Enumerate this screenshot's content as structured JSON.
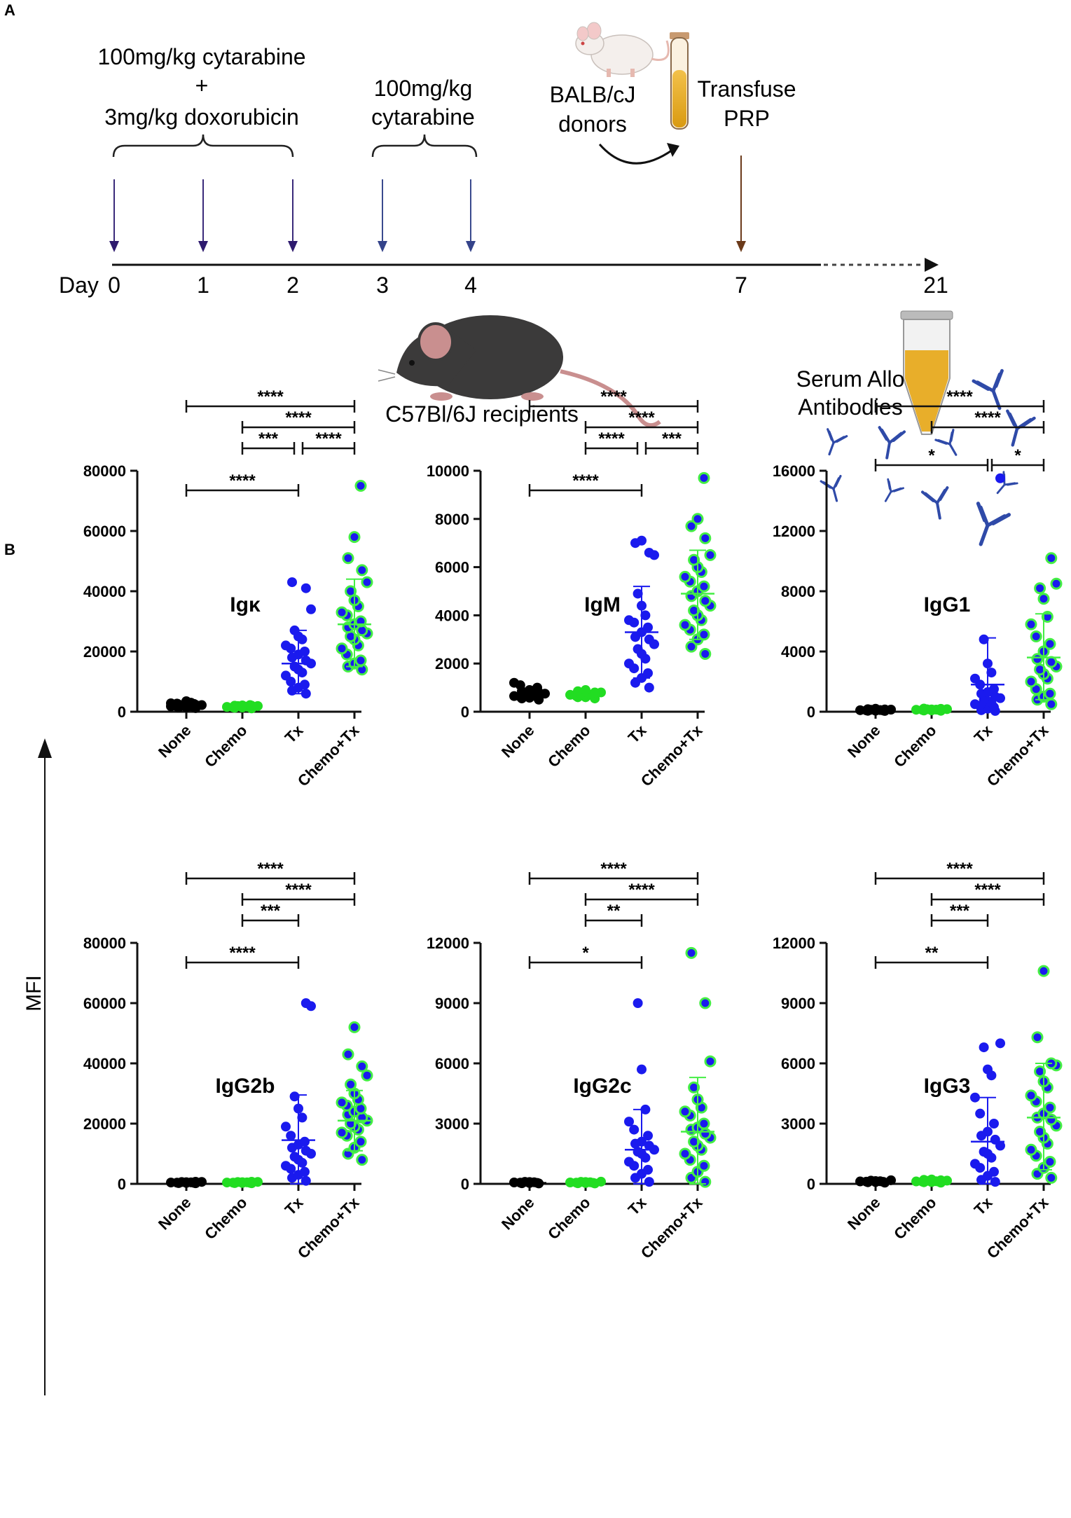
{
  "panelA": {
    "label": "A",
    "cond1_line1": "100mg/kg cytarabine",
    "cond1_plus": "+",
    "cond1_line2": "3mg/kg doxorubicin",
    "cond2_line1": "100mg/kg",
    "cond2_line2": "cytarabine",
    "donors_line1": "BALB/cJ",
    "donors_line2": "donors",
    "transfuse_line1": "Transfuse",
    "transfuse_line2": "PRP",
    "day_prefix": "Day",
    "days": [
      "0",
      "1",
      "2",
      "3",
      "4",
      "7",
      "21"
    ],
    "recipients": "C57Bl/6J recipients",
    "serum_line1": "Serum Allo",
    "serum_line2": "Antibodies"
  },
  "panelB": {
    "label": "B",
    "ylabel": "MFI"
  },
  "colors": {
    "none": "#000000",
    "chemo": "#22dd22",
    "tx": "#1a1aee",
    "chemotx": "#1a1aee",
    "chemotx_edge": "#44ee44"
  },
  "chart_data": [
    {
      "type": "scatter",
      "title": "Igκ",
      "categories": [
        "None",
        "Chemo",
        "Tx",
        "Chemo+Tx"
      ],
      "ylim": [
        0,
        80000
      ],
      "yticks": [
        "0",
        "20000",
        "40000",
        "60000",
        "80000"
      ],
      "series": [
        {
          "name": "None",
          "values": [
            1200,
            1500,
            1800,
            2000,
            2200,
            2400,
            2600,
            2800,
            3000,
            3500,
            1600,
            1900,
            2100,
            2500,
            2300,
            1700,
            1400,
            2700
          ],
          "mean": 2000
        },
        {
          "name": "Chemo",
          "values": [
            1100,
            1300,
            1500,
            1600,
            1800,
            1900,
            2000,
            2100,
            2200,
            1400,
            1700,
            1500,
            1900,
            2000
          ],
          "mean": 1800
        },
        {
          "name": "Tx",
          "values": [
            43000,
            41000,
            34000,
            27000,
            25000,
            22000,
            19000,
            18000,
            16000,
            15000,
            14000,
            12000,
            10000,
            9000,
            8000,
            7000,
            6000,
            20000,
            21000,
            24000,
            17000,
            13000
          ],
          "mean": 16000,
          "sd": [
            6000,
            27000
          ]
        },
        {
          "name": "Chemo+Tx",
          "values": [
            75000,
            58000,
            51000,
            47000,
            43000,
            40000,
            37000,
            35000,
            32000,
            30000,
            28000,
            27000,
            26000,
            25000,
            24000,
            22000,
            21000,
            19000,
            17000,
            16000,
            15000,
            14000,
            33000,
            29000
          ],
          "mean": 29000,
          "sd": [
            15000,
            44000
          ]
        }
      ],
      "comparisons": [
        {
          "groups": [
            "None",
            "Chemo+Tx"
          ],
          "label": "****"
        },
        {
          "groups": [
            "Chemo",
            "Chemo+Tx"
          ],
          "label": "****"
        },
        {
          "groups": [
            "Chemo",
            "Tx"
          ],
          "label": "***"
        },
        {
          "groups": [
            "Tx",
            "Chemo+Tx"
          ],
          "label": "****"
        },
        {
          "groups": [
            "None",
            "Tx"
          ],
          "label": "****"
        }
      ]
    },
    {
      "type": "scatter",
      "title": "IgM",
      "categories": [
        "None",
        "Chemo",
        "Tx",
        "Chemo+Tx"
      ],
      "ylim": [
        0,
        10000
      ],
      "yticks": [
        "0",
        "2000",
        "4000",
        "6000",
        "8000",
        "10000"
      ],
      "series": [
        {
          "name": "None",
          "values": [
            500,
            550,
            600,
            650,
            700,
            750,
            800,
            850,
            900,
            1000,
            1100,
            1200,
            620,
            680,
            720,
            580
          ],
          "mean": 700
        },
        {
          "name": "Chemo",
          "values": [
            550,
            600,
            650,
            700,
            750,
            800,
            850,
            900,
            650,
            700,
            750,
            600,
            800
          ],
          "mean": 700
        },
        {
          "name": "Tx",
          "values": [
            7100,
            7000,
            6600,
            6500,
            4900,
            4400,
            4000,
            3800,
            3500,
            3300,
            3100,
            3000,
            2800,
            2600,
            2400,
            2200,
            2000,
            1800,
            1600,
            1400,
            1200,
            1000,
            3700
          ],
          "mean": 3300,
          "sd": [
            1400,
            5200
          ]
        },
        {
          "name": "Chemo+Tx",
          "values": [
            9700,
            8000,
            7700,
            7200,
            6500,
            6300,
            6000,
            5600,
            5400,
            5200,
            5000,
            4800,
            4600,
            4400,
            4200,
            4000,
            3800,
            3600,
            3400,
            3200,
            3000,
            2700,
            2400,
            5800
          ],
          "mean": 4900,
          "sd": [
            3000,
            6700
          ]
        }
      ],
      "comparisons": [
        {
          "groups": [
            "None",
            "Chemo+Tx"
          ],
          "label": "****"
        },
        {
          "groups": [
            "Chemo",
            "Chemo+Tx"
          ],
          "label": "****"
        },
        {
          "groups": [
            "Chemo",
            "Tx"
          ],
          "label": "****"
        },
        {
          "groups": [
            "Tx",
            "Chemo+Tx"
          ],
          "label": "***"
        },
        {
          "groups": [
            "None",
            "Tx"
          ],
          "label": "****"
        }
      ]
    },
    {
      "type": "scatter",
      "title": "IgG1",
      "categories": [
        "None",
        "Chemo",
        "Tx",
        "Chemo+Tx"
      ],
      "ylim": [
        0,
        16000
      ],
      "yticks": [
        "0",
        "4000",
        "8000",
        "12000",
        "16000"
      ],
      "series": [
        {
          "name": "None",
          "values": [
            50,
            80,
            100,
            120,
            150,
            170,
            200,
            60,
            90,
            110,
            130,
            140,
            70
          ],
          "mean": 100
        },
        {
          "name": "Chemo",
          "values": [
            60,
            90,
            110,
            130,
            150,
            170,
            190,
            210,
            80,
            120,
            140,
            160
          ],
          "mean": 130
        },
        {
          "name": "Tx",
          "values": [
            15500,
            4800,
            3200,
            2600,
            2200,
            1800,
            1500,
            1200,
            1000,
            800,
            600,
            500,
            400,
            300,
            200,
            100,
            50,
            1300,
            900,
            700
          ],
          "mean": 1800,
          "sd": [
            0,
            4900
          ]
        },
        {
          "name": "Chemo+Tx",
          "values": [
            10200,
            8500,
            8200,
            7500,
            6300,
            5800,
            5000,
            4500,
            4000,
            3500,
            3000,
            2500,
            2000,
            1500,
            1200,
            1000,
            800,
            500,
            2200,
            2800,
            3300
          ],
          "mean": 3600,
          "sd": [
            800,
            6500
          ]
        }
      ],
      "comparisons": [
        {
          "groups": [
            "None",
            "Chemo+Tx"
          ],
          "label": "****"
        },
        {
          "groups": [
            "Chemo",
            "Chemo+Tx"
          ],
          "label": "****"
        },
        {
          "groups": [
            "None",
            "Tx"
          ],
          "label": "*"
        },
        {
          "groups": [
            "Tx",
            "Chemo+Tx"
          ],
          "label": "*"
        }
      ]
    },
    {
      "type": "scatter",
      "title": "IgG2b",
      "categories": [
        "None",
        "Chemo",
        "Tx",
        "Chemo+Tx"
      ],
      "ylim": [
        0,
        80000
      ],
      "yticks": [
        "0",
        "20000",
        "40000",
        "60000",
        "80000"
      ],
      "series": [
        {
          "name": "None",
          "values": [
            200,
            300,
            400,
            500,
            600,
            700,
            250,
            350,
            450,
            550,
            650
          ],
          "mean": 450
        },
        {
          "name": "Chemo",
          "values": [
            200,
            300,
            400,
            500,
            600,
            700,
            350,
            450,
            550,
            250,
            650
          ],
          "mean": 450
        },
        {
          "name": "Tx",
          "values": [
            60000,
            59000,
            29000,
            25000,
            22000,
            19000,
            16000,
            14000,
            12000,
            10000,
            9000,
            8000,
            7000,
            6000,
            5000,
            4000,
            3000,
            2000,
            1000,
            11000,
            13000
          ],
          "mean": 14500,
          "sd": [
            0,
            29500
          ]
        },
        {
          "name": "Chemo+Tx",
          "values": [
            52000,
            43000,
            39000,
            36000,
            33000,
            30000,
            28000,
            26000,
            24000,
            23000,
            22000,
            21000,
            20000,
            19000,
            18000,
            17000,
            16000,
            14000,
            12000,
            10000,
            8000,
            25000,
            27000
          ],
          "mean": 21000,
          "sd": [
            11000,
            31000
          ]
        }
      ],
      "comparisons": [
        {
          "groups": [
            "None",
            "Chemo+Tx"
          ],
          "label": "****"
        },
        {
          "groups": [
            "Chemo",
            "Chemo+Tx"
          ],
          "label": "****"
        },
        {
          "groups": [
            "Chemo",
            "Tx"
          ],
          "label": "***"
        },
        {
          "groups": [
            "None",
            "Tx"
          ],
          "label": "****"
        }
      ]
    },
    {
      "type": "scatter",
      "title": "IgG2c",
      "categories": [
        "None",
        "Chemo",
        "Tx",
        "Chemo+Tx"
      ],
      "ylim": [
        0,
        12000
      ],
      "yticks": [
        "0",
        "3000",
        "6000",
        "9000",
        "12000"
      ],
      "series": [
        {
          "name": "None",
          "values": [
            20,
            40,
            60,
            80,
            100,
            30,
            50,
            70,
            90
          ],
          "mean": 50
        },
        {
          "name": "Chemo",
          "values": [
            20,
            40,
            60,
            80,
            100,
            30,
            50,
            70,
            90,
            110
          ],
          "mean": 50
        },
        {
          "name": "Tx",
          "values": [
            9000,
            5700,
            3700,
            3100,
            2700,
            2400,
            2100,
            1900,
            1700,
            1500,
            1300,
            1100,
            900,
            700,
            500,
            300,
            100,
            2000,
            1600
          ],
          "mean": 1700,
          "sd": [
            0,
            3700
          ]
        },
        {
          "name": "Chemo+Tx",
          "values": [
            11500,
            9000,
            6100,
            4800,
            4200,
            3800,
            3400,
            3000,
            2700,
            2500,
            2300,
            2100,
            1900,
            1700,
            1500,
            1200,
            900,
            600,
            300,
            100,
            3600,
            2800
          ],
          "mean": 2600,
          "sd": [
            0,
            5300
          ]
        }
      ],
      "comparisons": [
        {
          "groups": [
            "None",
            "Chemo+Tx"
          ],
          "label": "****"
        },
        {
          "groups": [
            "Chemo",
            "Chemo+Tx"
          ],
          "label": "****"
        },
        {
          "groups": [
            "Chemo",
            "Tx"
          ],
          "label": "**"
        },
        {
          "groups": [
            "None",
            "Tx"
          ],
          "label": "*"
        }
      ]
    },
    {
      "type": "scatter",
      "title": "IgG3",
      "categories": [
        "None",
        "Chemo",
        "Tx",
        "Chemo+Tx"
      ],
      "ylim": [
        0,
        12000
      ],
      "yticks": [
        "0",
        "3000",
        "6000",
        "9000",
        "12000"
      ],
      "series": [
        {
          "name": "None",
          "values": [
            60,
            80,
            100,
            120,
            140,
            160,
            180,
            90,
            110,
            130
          ],
          "mean": 120
        },
        {
          "name": "Chemo",
          "values": [
            60,
            80,
            100,
            120,
            140,
            160,
            180,
            200,
            220,
            90,
            110,
            130,
            150
          ],
          "mean": 140
        },
        {
          "name": "Tx",
          "values": [
            7000,
            6800,
            5700,
            5400,
            4300,
            3500,
            3000,
            2600,
            2200,
            1900,
            1600,
            1300,
            1000,
            800,
            600,
            400,
            200,
            100,
            2400,
            1500
          ],
          "mean": 2100,
          "sd": [
            0,
            4300
          ]
        },
        {
          "name": "Chemo+Tx",
          "values": [
            10600,
            7300,
            6000,
            5900,
            5600,
            5100,
            4800,
            4400,
            4100,
            3800,
            3500,
            3200,
            2900,
            2600,
            2300,
            2000,
            1700,
            1400,
            1100,
            800,
            500,
            300,
            3300
          ],
          "mean": 3300,
          "sd": [
            700,
            6000
          ]
        }
      ],
      "comparisons": [
        {
          "groups": [
            "None",
            "Chemo+Tx"
          ],
          "label": "****"
        },
        {
          "groups": [
            "Chemo",
            "Chemo+Tx"
          ],
          "label": "****"
        },
        {
          "groups": [
            "Chemo",
            "Tx"
          ],
          "label": "***"
        },
        {
          "groups": [
            "None",
            "Tx"
          ],
          "label": "**"
        }
      ]
    }
  ]
}
